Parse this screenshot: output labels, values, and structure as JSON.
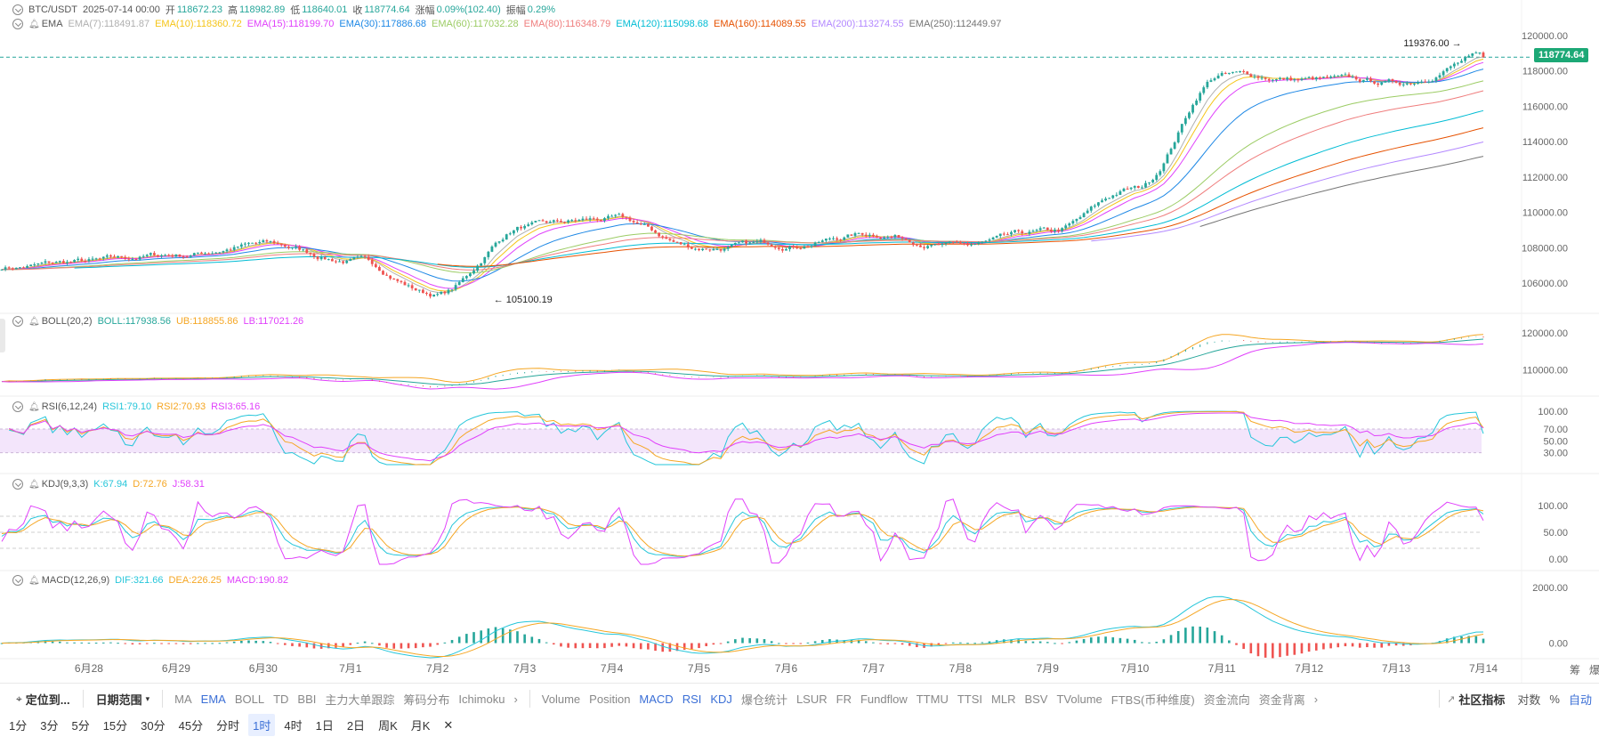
{
  "header": {
    "symbol": "BTC/USDT",
    "date": "2025-07-14 00:00",
    "open_label": "开",
    "open": "118672.23",
    "high_label": "高",
    "high": "118982.89",
    "low_label": "低",
    "low": "118640.01",
    "close_label": "收",
    "close": "118774.64",
    "change_label": "涨幅",
    "change": "0.09%(102.40)",
    "amp_label": "振幅",
    "amp": "0.29%"
  },
  "colors": {
    "up": "#26a69a",
    "down": "#ef5350",
    "accent": "#3b6fd6",
    "grid": "#f0f0f0"
  },
  "ema": {
    "title": "EMA",
    "items": [
      {
        "label": "EMA(7):118491.87",
        "color": "#b0b0b0"
      },
      {
        "label": "EMA(10):118360.72",
        "color": "#f5c518"
      },
      {
        "label": "EMA(15):118199.70",
        "color": "#e040fb"
      },
      {
        "label": "EMA(30):117886.68",
        "color": "#1e88e5"
      },
      {
        "label": "EMA(60):117032.28",
        "color": "#9ccc65"
      },
      {
        "label": "EMA(80):116348.79",
        "color": "#ef7d7d"
      },
      {
        "label": "EMA(120):115098.68",
        "color": "#00bcd4"
      },
      {
        "label": "EMA(160):114089.55",
        "color": "#e65100"
      },
      {
        "label": "EMA(200):113274.55",
        "color": "#b388ff"
      },
      {
        "label": "EMA(250):112449.97",
        "color": "#757575"
      }
    ]
  },
  "boll": {
    "title": "BOLL(20,2)",
    "items": [
      {
        "label": "BOLL:117938.56",
        "color": "#26a69a"
      },
      {
        "label": "UB:118855.86",
        "color": "#f5a623"
      },
      {
        "label": "LB:117021.26",
        "color": "#e040fb"
      }
    ]
  },
  "rsi": {
    "title": "RSI(6,12,24)",
    "items": [
      {
        "label": "RSI1:79.10",
        "color": "#26c6da"
      },
      {
        "label": "RSI2:70.93",
        "color": "#f5a623"
      },
      {
        "label": "RSI3:65.16",
        "color": "#e040fb"
      }
    ]
  },
  "kdj": {
    "title": "KDJ(9,3,3)",
    "items": [
      {
        "label": "K:67.94",
        "color": "#26c6da"
      },
      {
        "label": "D:72.76",
        "color": "#f5a623"
      },
      {
        "label": "J:58.31",
        "color": "#e040fb"
      }
    ]
  },
  "macd": {
    "title": "MACD(12,26,9)",
    "items": [
      {
        "label": "DIF:321.66",
        "color": "#26c6da"
      },
      {
        "label": "DEA:226.25",
        "color": "#f5a623"
      },
      {
        "label": "MACD:190.82",
        "color": "#e040fb"
      }
    ]
  },
  "price_axis": {
    "ticks": [
      "120000.00",
      "118000.00",
      "116000.00",
      "114000.00",
      "112000.00",
      "110000.00",
      "108000.00",
      "106000.00"
    ],
    "last_price": "118774.64"
  },
  "boll_axis": {
    "ticks": [
      "120000.00",
      "110000.00"
    ]
  },
  "rsi_axis": {
    "ticks": [
      "100.00",
      "70.00",
      "50.00",
      "30.00"
    ]
  },
  "kdj_axis": {
    "ticks": [
      "100.00",
      "50.00",
      "0.00"
    ]
  },
  "macd_axis": {
    "ticks": [
      "2000.00",
      "0.00"
    ]
  },
  "x_axis": {
    "ticks": [
      "6月28",
      "6月29",
      "6月30",
      "7月1",
      "7月2",
      "7月3",
      "7月4",
      "7月5",
      "7月6",
      "7月7",
      "7月8",
      "7月9",
      "7月10",
      "7月11",
      "7月12",
      "7月13",
      "7月14"
    ],
    "right_labels": [
      "筹",
      "爆"
    ]
  },
  "annotations": {
    "high": "119376.00",
    "low": "105100.19"
  },
  "toolbar": {
    "locate": "定位到...",
    "date_range": "日期范围",
    "main_indicators": [
      "MA",
      "EMA",
      "BOLL",
      "TD",
      "BBI",
      "主力大单跟踪",
      "筹码分布",
      "Ichimoku"
    ],
    "main_active": [
      "EMA"
    ],
    "sub_indicators": [
      "Volume",
      "Position",
      "MACD",
      "RSI",
      "KDJ",
      "爆仓统计",
      "LSUR",
      "FR",
      "Fundflow",
      "TTMU",
      "TTSI",
      "MLR",
      "BSV",
      "TVolume",
      "FTBS(币种维度)",
      "资金流向",
      "资金背离"
    ],
    "sub_active": [
      "MACD",
      "RSI",
      "KDJ"
    ],
    "community": "社区指标",
    "log": "对数",
    "pct": "%",
    "auto": "自动"
  },
  "timeframes": {
    "items": [
      "1分",
      "3分",
      "5分",
      "15分",
      "30分",
      "45分",
      "分时",
      "1时",
      "4时",
      "1日",
      "2日",
      "周K",
      "月K"
    ],
    "active": "1时"
  },
  "chart_data": {
    "type": "candlestick",
    "title": "BTC/USDT",
    "interval": "1h",
    "x_range": [
      "6月28",
      "7月14"
    ],
    "price_ylim": [
      104500,
      120500
    ],
    "key_points": [
      {
        "x": "6月27",
        "close": 106900
      },
      {
        "x": "6月28",
        "close": 107200
      },
      {
        "x": "6月29",
        "close": 107600
      },
      {
        "x": "6月30",
        "close": 108200
      },
      {
        "x": "7月1",
        "close": 107300
      },
      {
        "x": "7月2",
        "close": 105400
      },
      {
        "x": "7月3",
        "close": 109200
      },
      {
        "x": "7月4",
        "close": 109600
      },
      {
        "x": "7月5",
        "close": 108000
      },
      {
        "x": "7月6",
        "close": 108200
      },
      {
        "x": "7月7",
        "close": 108800
      },
      {
        "x": "7月8",
        "close": 108100
      },
      {
        "x": "7月9",
        "close": 108800
      },
      {
        "x": "7月10",
        "close": 111300
      },
      {
        "x": "7月11",
        "close": 117800
      },
      {
        "x": "7月12",
        "close": 117500
      },
      {
        "x": "7月13",
        "close": 117300
      },
      {
        "x": "7月14",
        "close": 118774.64
      }
    ],
    "high_annotation": 119376.0,
    "low_annotation": 105100.19,
    "rsi_bands": [
      30,
      70
    ],
    "kdj_levels": [
      20,
      50,
      80
    ]
  }
}
